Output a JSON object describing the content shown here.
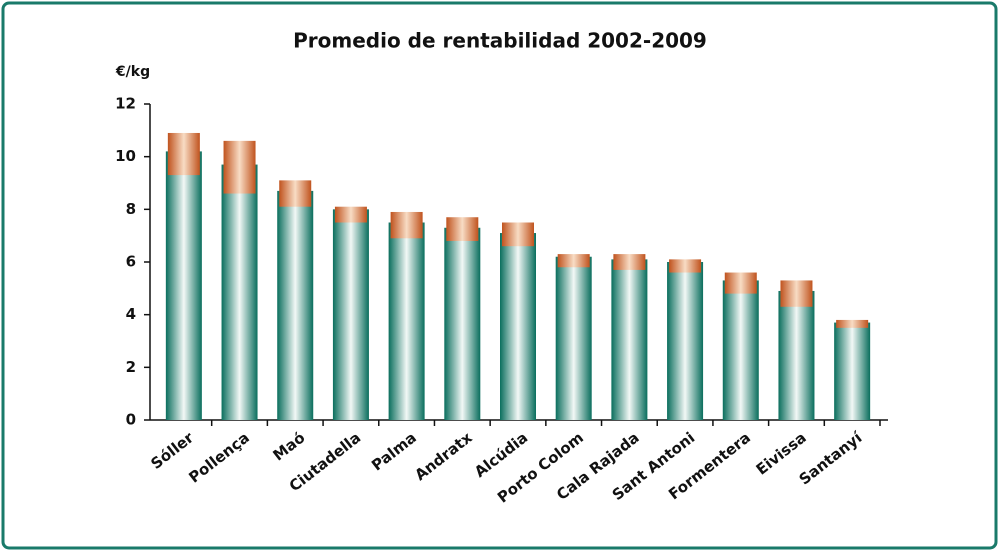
{
  "chart_data": {
    "type": "range-bar",
    "title": "Promedio de rentabilidad 2002-2009",
    "y_label": "€/kg",
    "categories": [
      "Sóller",
      "Pollença",
      "Maó",
      "Ciutadella",
      "Palma",
      "Andratx",
      "Alcúdia",
      "Porto Colom",
      "Cala Rajada",
      "Sant Antoni",
      "Formentera",
      "Eivissa",
      "Santanyí"
    ],
    "values": [
      10.2,
      9.7,
      8.7,
      8.0,
      7.5,
      7.3,
      7.1,
      6.2,
      6.1,
      6.0,
      5.3,
      4.9,
      3.7
    ],
    "range_low": [
      9.3,
      8.6,
      8.1,
      7.5,
      6.9,
      6.8,
      6.6,
      5.8,
      5.7,
      5.6,
      4.8,
      4.3,
      3.5
    ],
    "range_high": [
      10.9,
      10.6,
      9.1,
      8.1,
      7.9,
      7.7,
      7.5,
      6.3,
      6.3,
      6.1,
      5.6,
      5.3,
      3.8
    ],
    "color": "#0f7a68",
    "range_color": "#c8602a",
    "ylim": [
      0,
      12
    ],
    "yticks": [
      0,
      2,
      4,
      6,
      8,
      10,
      12
    ]
  }
}
